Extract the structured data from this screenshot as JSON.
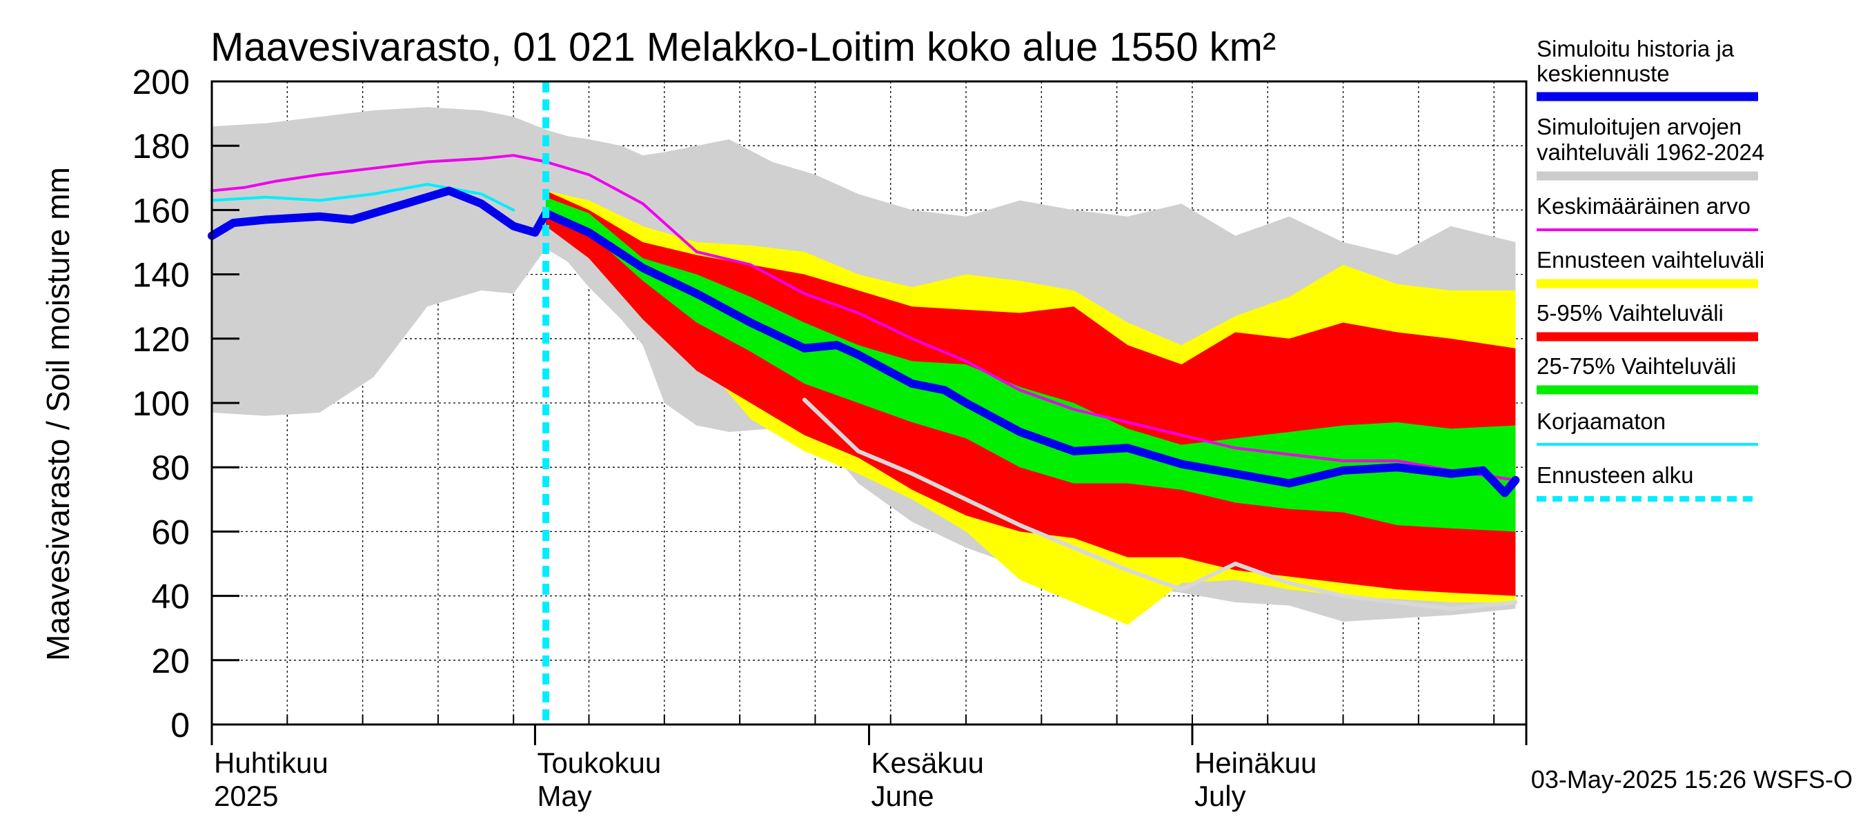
{
  "chart_data": {
    "type": "area",
    "title": "Maavesivarasto, 01 021 Melakko-Loitim koko alue 1550 km²",
    "ylabel": "Maavesivarasto / Soil moisture   mm",
    "ylim": [
      0,
      200
    ],
    "yticks": [
      0,
      20,
      40,
      60,
      80,
      100,
      120,
      140,
      160,
      180,
      200
    ],
    "xlim": [
      "2025-04-01",
      "2025-08-01"
    ],
    "forecast_start": "2025-05-02",
    "month_labels": [
      {
        "fi": "Huhtikuu",
        "en": "2025",
        "date": "2025-04-01"
      },
      {
        "fi": "Toukokuu",
        "en": "May",
        "date": "2025-05-01"
      },
      {
        "fi": "Kesäkuu",
        "en": "June",
        "date": "2025-06-01"
      },
      {
        "fi": "Heinäkuu",
        "en": "July",
        "date": "2025-07-01"
      }
    ],
    "footer": "03-May-2025 15:26 WSFS-O",
    "legend": [
      {
        "label_lines": [
          "Simuloitu historia ja",
          "keskiennuste"
        ],
        "color": "#0000ee",
        "style": "thick"
      },
      {
        "label_lines": [
          "Simuloitujen arvojen",
          "vaihteluväli 1962-2024"
        ],
        "color": "#cccccc",
        "style": "thick"
      },
      {
        "label_lines": [
          "Keskimääräinen arvo"
        ],
        "color": "#ee00ee",
        "style": "thin"
      },
      {
        "label_lines": [
          "Ennusteen vaihteluväli"
        ],
        "color": "#ffff00",
        "style": "thick"
      },
      {
        "label_lines": [
          "5-95% Vaihteluväli"
        ],
        "color": "#ff0000",
        "style": "thick"
      },
      {
        "label_lines": [
          "25-75% Vaihteluväli"
        ],
        "color": "#00ee00",
        "style": "thick"
      },
      {
        "label_lines": [
          "Korjaamaton"
        ],
        "color": "#00eeff",
        "style": "thin"
      },
      {
        "label_lines": [
          "Ennusteen alku"
        ],
        "color": "#00eeff",
        "style": "dashed"
      }
    ],
    "series": {
      "hist_range": {
        "name": "Simuloitujen arvojen vaihteluväli 1962-2024",
        "x": [
          0,
          5,
          10,
          15,
          20,
          25,
          28,
          31,
          33,
          35,
          38,
          40,
          42,
          45,
          48,
          52,
          56,
          60,
          65,
          70,
          75,
          80,
          85,
          90,
          95,
          100,
          105,
          110,
          115,
          121
        ],
        "upper": [
          186,
          187,
          189,
          191,
          192,
          191,
          189,
          185,
          183,
          182,
          180,
          177,
          178,
          180,
          182,
          175,
          171,
          165,
          160,
          158,
          163,
          160,
          158,
          162,
          152,
          158,
          150,
          146,
          155,
          150
        ],
        "lower": [
          97,
          96,
          97,
          108,
          130,
          135,
          134,
          148,
          144,
          136,
          126,
          118,
          100,
          93,
          91,
          92,
          91,
          75,
          63,
          55,
          49,
          45,
          43,
          41,
          38,
          37,
          32,
          33,
          34,
          36
        ]
      },
      "forecast_range": {
        "name": "Ennusteen vaihteluväli",
        "x": [
          31,
          35,
          40,
          45,
          50,
          55,
          60,
          65,
          70,
          75,
          80,
          85,
          90,
          95,
          100,
          105,
          110,
          115,
          121
        ],
        "upper": [
          166,
          163,
          155,
          150,
          149,
          147,
          140,
          136,
          140,
          138,
          135,
          125,
          118,
          127,
          133,
          143,
          137,
          135,
          135
        ],
        "lower": [
          158,
          145,
          130,
          115,
          95,
          85,
          78,
          70,
          60,
          45,
          38,
          31,
          44,
          45,
          42,
          40,
          39,
          38,
          38
        ]
      },
      "p5_95": {
        "name": "5-95% Vaihteluväli",
        "x": [
          31,
          35,
          40,
          45,
          50,
          55,
          60,
          65,
          70,
          75,
          80,
          85,
          90,
          95,
          100,
          105,
          110,
          115,
          121
        ],
        "upper": [
          166,
          160,
          150,
          146,
          143,
          140,
          135,
          130,
          129,
          128,
          130,
          118,
          112,
          122,
          120,
          125,
          122,
          120,
          117
        ],
        "lower": [
          155,
          145,
          126,
          110,
          100,
          90,
          83,
          73,
          65,
          60,
          58,
          52,
          52,
          48,
          46,
          44,
          42,
          41,
          40
        ]
      },
      "p25_75": {
        "name": "25-75% Vaihteluväli",
        "x": [
          31,
          35,
          40,
          45,
          50,
          55,
          60,
          65,
          70,
          75,
          80,
          85,
          90,
          95,
          100,
          105,
          110,
          115,
          121
        ],
        "upper": [
          164,
          159,
          145,
          140,
          133,
          125,
          118,
          113,
          112,
          105,
          100,
          92,
          87,
          89,
          91,
          93,
          94,
          92,
          93
        ],
        "lower": [
          160,
          153,
          138,
          125,
          116,
          106,
          100,
          94,
          89,
          80,
          75,
          75,
          73,
          69,
          67,
          66,
          62,
          61,
          60
        ]
      },
      "mean": {
        "name": "Keskimääräinen arvo",
        "x": [
          0,
          3,
          6,
          10,
          15,
          20,
          25,
          28,
          31,
          35,
          40,
          45,
          50,
          55,
          60,
          65,
          70,
          75,
          80,
          85,
          90,
          95,
          100,
          105,
          110,
          115,
          121
        ],
        "values": [
          166,
          167,
          169,
          171,
          173,
          175,
          176,
          177,
          175,
          171,
          162,
          147,
          143,
          134,
          128,
          120,
          113,
          104,
          98,
          94,
          90,
          86,
          84,
          82,
          82,
          79,
          76
        ]
      },
      "uncorrected": {
        "name": "Korjaamaton",
        "x": [
          0,
          5,
          10,
          15,
          20,
          25,
          28
        ],
        "values": [
          163,
          164,
          163,
          165,
          168,
          165,
          160
        ]
      },
      "sim_history_median": {
        "name": "Simuloitu historia ja keskiennuste",
        "x": [
          0,
          2,
          5,
          10,
          13,
          18,
          22,
          25,
          28,
          30,
          31,
          35,
          40,
          45,
          50,
          55,
          58,
          60,
          65,
          68,
          70,
          75,
          80,
          85,
          90,
          95,
          100,
          105,
          110,
          115,
          118,
          120,
          121
        ],
        "values": [
          152,
          156,
          157,
          158,
          157,
          162,
          166,
          162,
          155,
          153,
          159,
          153,
          142,
          134,
          125,
          117,
          118,
          115,
          106,
          104,
          100,
          91,
          85,
          86,
          81,
          78,
          75,
          79,
          80,
          78,
          79,
          72,
          76
        ]
      },
      "driest_year": {
        "name": "light gray line",
        "x": [
          55,
          60,
          65,
          70,
          75,
          80,
          85,
          90,
          95,
          100,
          105,
          110,
          115,
          121
        ],
        "values": [
          101,
          85,
          78,
          70,
          62,
          55,
          48,
          42,
          50,
          44,
          40,
          38,
          36,
          38
        ]
      }
    }
  }
}
